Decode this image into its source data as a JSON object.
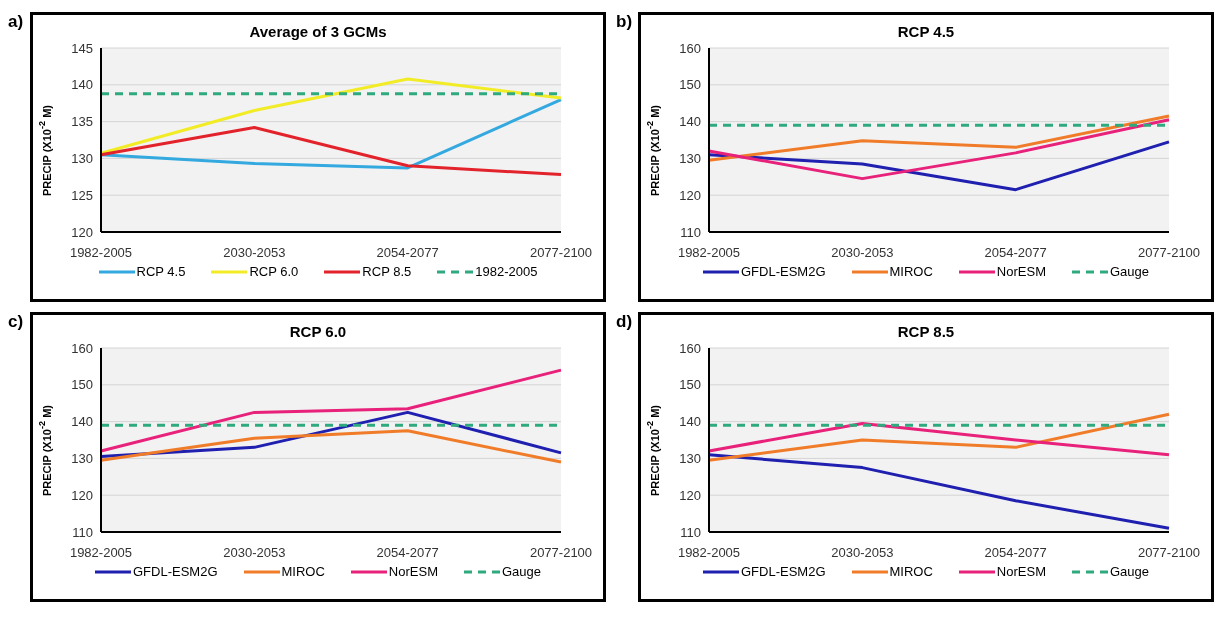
{
  "chart_data": [
    {
      "type": "line",
      "title": "Average of 3 GCMs",
      "annotations": [
        "a)"
      ],
      "ylabel": "PRECIP  (X10$^{-2}$ M)",
      "categories": [
        "1982-2005",
        "2030-2053",
        "2054-2077",
        "2077-2100"
      ],
      "ylim": [
        120,
        145
      ],
      "yticks": [
        120,
        125,
        130,
        135,
        140,
        145
      ],
      "grid": "y",
      "legend": "bottom",
      "marker": "none",
      "series": [
        {
          "name": "RCP 4.5",
          "color": "#33a9e0",
          "values": [
            130.5,
            129.3,
            128.7,
            138.0
          ]
        },
        {
          "name": "RCP 6.0",
          "color": "#f2ec27",
          "values": [
            130.7,
            136.5,
            140.8,
            138.2
          ]
        },
        {
          "name": "RCP 8.5",
          "color": "#e3232b",
          "values": [
            130.5,
            134.2,
            129.0,
            127.8
          ]
        },
        {
          "name": "1982-2005",
          "color": "#2eaa7e",
          "line_style": "dashed",
          "values": [
            138.8,
            138.8,
            138.8,
            138.8
          ]
        }
      ]
    },
    {
      "type": "line",
      "title": "RCP 4.5",
      "annotations": [
        "b)"
      ],
      "ylabel": "PRECIP  (X10$^{-2}$ M)",
      "categories": [
        "1982-2005",
        "2030-2053",
        "2054-2077",
        "2077-2100"
      ],
      "ylim": [
        110,
        160
      ],
      "yticks": [
        110,
        120,
        130,
        140,
        150,
        160
      ],
      "grid": "y",
      "legend": "bottom",
      "marker": "none",
      "series": [
        {
          "name": "GFDL-ESM2G",
          "color": "#1f1fb0",
          "values": [
            131,
            128.5,
            121.5,
            134.5
          ]
        },
        {
          "name": "MIROC",
          "color": "#f07c29",
          "values": [
            129.5,
            134.8,
            133,
            141.5
          ]
        },
        {
          "name": "NorESM",
          "color": "#e8217a",
          "values": [
            132,
            124.5,
            131.5,
            140.5
          ]
        },
        {
          "name": "Gauge",
          "color": "#2eaa7e",
          "line_style": "dashed",
          "values": [
            139,
            139,
            139,
            139
          ]
        }
      ]
    },
    {
      "type": "line",
      "title": "RCP 6.0",
      "annotations": [
        "c)"
      ],
      "ylabel": "PRECIP  (X10$^{-2}$ M)",
      "categories": [
        "1982-2005",
        "2030-2053",
        "2054-2077",
        "2077-2100"
      ],
      "ylim": [
        110,
        160
      ],
      "yticks": [
        110,
        120,
        130,
        140,
        150,
        160
      ],
      "grid": "y",
      "legend": "bottom",
      "marker": "none",
      "series": [
        {
          "name": "GFDL-ESM2G",
          "color": "#1f1fb0",
          "values": [
            130.5,
            133,
            142.5,
            131.5
          ]
        },
        {
          "name": "MIROC",
          "color": "#f07c29",
          "values": [
            129.5,
            135.5,
            137.5,
            129
          ]
        },
        {
          "name": "NorESM",
          "color": "#e8217a",
          "values": [
            132,
            142.5,
            143.5,
            154
          ]
        },
        {
          "name": "Gauge",
          "color": "#2eaa7e",
          "line_style": "dashed",
          "values": [
            139,
            139,
            139,
            139
          ]
        }
      ]
    },
    {
      "type": "line",
      "title": "RCP 8.5",
      "annotations": [
        "d)"
      ],
      "ylabel": "PRECIP  (X10$^{-2}$ M)",
      "categories": [
        "1982-2005",
        "2030-2053",
        "2054-2077",
        "2077-2100"
      ],
      "ylim": [
        110,
        160
      ],
      "yticks": [
        110,
        120,
        130,
        140,
        150,
        160
      ],
      "grid": "y",
      "legend": "bottom",
      "marker": "none",
      "series": [
        {
          "name": "GFDL-ESM2G",
          "color": "#1f1fb0",
          "values": [
            131,
            127.5,
            118.5,
            111
          ]
        },
        {
          "name": "MIROC",
          "color": "#f07c29",
          "values": [
            129.5,
            135,
            133,
            142
          ]
        },
        {
          "name": "NorESM",
          "color": "#e8217a",
          "values": [
            132,
            139.5,
            135,
            131
          ]
        },
        {
          "name": "Gauge",
          "color": "#2eaa7e",
          "line_style": "dashed",
          "values": [
            139,
            139,
            139,
            139
          ]
        }
      ]
    }
  ]
}
